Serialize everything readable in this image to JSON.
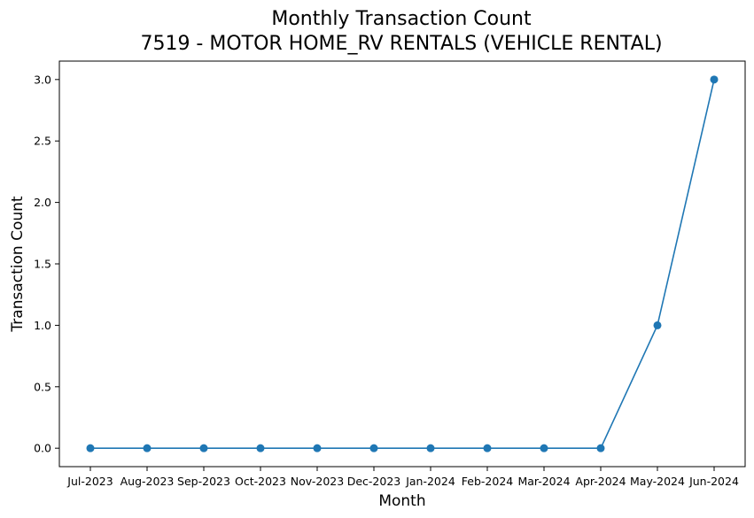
{
  "chart_data": {
    "type": "line",
    "title": "Monthly Transaction Count",
    "subtitle": "7519 - MOTOR HOME_RV RENTALS (VEHICLE RENTAL)",
    "xlabel": "Month",
    "ylabel": "Transaction Count",
    "categories": [
      "Jul-2023",
      "Aug-2023",
      "Sep-2023",
      "Oct-2023",
      "Nov-2023",
      "Dec-2023",
      "Jan-2024",
      "Feb-2024",
      "Mar-2024",
      "Apr-2024",
      "May-2024",
      "Jun-2024"
    ],
    "values": [
      0,
      0,
      0,
      0,
      0,
      0,
      0,
      0,
      0,
      0,
      1,
      3
    ],
    "ylim": [
      -0.15,
      3.15
    ],
    "yticks": [
      "0.0",
      "0.5",
      "1.0",
      "1.5",
      "2.0",
      "2.5",
      "3.0"
    ],
    "grid": false,
    "line_color": "#1f77b4"
  }
}
